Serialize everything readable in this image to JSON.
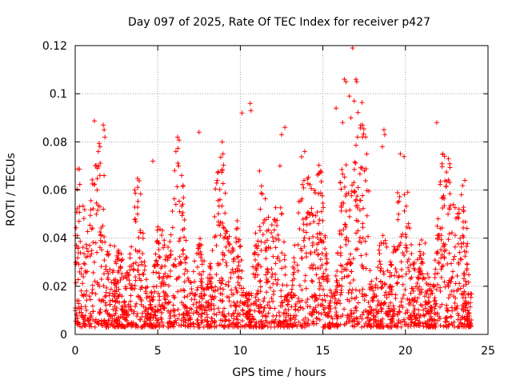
{
  "chart_data": {
    "type": "scatter",
    "title": "Day 097 of 2025, Rate Of TEC Index for receiver p427",
    "xlabel": "GPS time / hours",
    "ylabel": "ROTI / TECUs",
    "xlim": [
      0,
      25
    ],
    "ylim": [
      0,
      0.12
    ],
    "xticks": [
      "0",
      "5",
      "10",
      "15",
      "20",
      "25"
    ],
    "yticks": [
      "0",
      "0.02",
      "0.04",
      "0.06",
      "0.08",
      "0.1",
      "0.12"
    ],
    "xtick_values": [
      0,
      5,
      10,
      15,
      20,
      25
    ],
    "ytick_values": [
      0,
      0.02,
      0.04,
      0.06,
      0.08,
      0.1,
      0.12
    ],
    "grid": true,
    "marker": "plus",
    "series": [
      {
        "color": "#ff0000",
        "x_range": [
          0,
          24
        ],
        "outliers": [
          {
            "x": 1.7,
            "y": 0.087
          },
          {
            "x": 1.75,
            "y": 0.085
          },
          {
            "x": 1.8,
            "y": 0.082
          },
          {
            "x": 1.4,
            "y": 0.076
          },
          {
            "x": 1.5,
            "y": 0.078
          },
          {
            "x": 1.35,
            "y": 0.069
          },
          {
            "x": 1.75,
            "y": 0.066
          },
          {
            "x": 4.7,
            "y": 0.072
          },
          {
            "x": 6.2,
            "y": 0.082
          },
          {
            "x": 6.1,
            "y": 0.076
          },
          {
            "x": 7.5,
            "y": 0.084
          },
          {
            "x": 8.9,
            "y": 0.08
          },
          {
            "x": 8.95,
            "y": 0.075
          },
          {
            "x": 10.1,
            "y": 0.092
          },
          {
            "x": 10.6,
            "y": 0.096
          },
          {
            "x": 10.65,
            "y": 0.093
          },
          {
            "x": 12.5,
            "y": 0.083
          },
          {
            "x": 12.7,
            "y": 0.086
          },
          {
            "x": 12.4,
            "y": 0.07
          },
          {
            "x": 13.9,
            "y": 0.076
          },
          {
            "x": 15.8,
            "y": 0.094
          },
          {
            "x": 16.3,
            "y": 0.106
          },
          {
            "x": 16.4,
            "y": 0.105
          },
          {
            "x": 16.2,
            "y": 0.088
          },
          {
            "x": 16.6,
            "y": 0.099
          },
          {
            "x": 16.8,
            "y": 0.119
          },
          {
            "x": 17.0,
            "y": 0.106
          },
          {
            "x": 17.05,
            "y": 0.105
          },
          {
            "x": 16.9,
            "y": 0.097
          },
          {
            "x": 16.7,
            "y": 0.09
          },
          {
            "x": 17.3,
            "y": 0.087
          },
          {
            "x": 17.4,
            "y": 0.082
          },
          {
            "x": 17.1,
            "y": 0.082
          },
          {
            "x": 18.7,
            "y": 0.085
          },
          {
            "x": 18.75,
            "y": 0.083
          },
          {
            "x": 18.6,
            "y": 0.078
          },
          {
            "x": 21.9,
            "y": 0.088
          },
          {
            "x": 22.6,
            "y": 0.073
          },
          {
            "x": 23.6,
            "y": 0.064
          }
        ]
      }
    ]
  }
}
